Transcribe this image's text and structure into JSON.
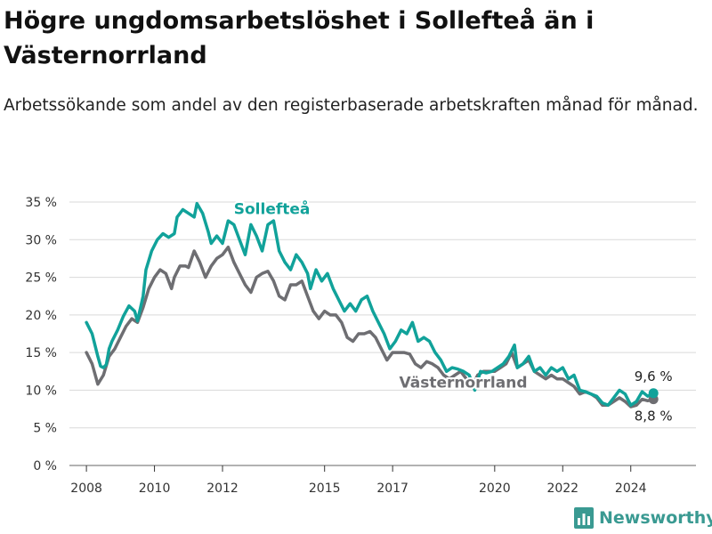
{
  "title": "Högre ungdomsarbetslöshet i Sollefteå än i Västernorrland",
  "subtitle": "Arbetssökande som andel av den registerbaserade arbetskraften månad för månad.",
  "logo": {
    "text": "Newsworthy",
    "icon": "bar-chart-logo-icon"
  },
  "colors": {
    "solleftea": "#11a29a",
    "vasternorrland": "#6e6e72",
    "grid": "#d9d9d9",
    "axis": "#333333"
  },
  "chart_data": {
    "type": "line",
    "x_ticks": [
      "2008",
      "2010",
      "2012",
      "2015",
      "2017",
      "2020",
      "2022",
      "2024"
    ],
    "y_ticks": [
      "0 %",
      "5 %",
      "10 %",
      "15 %",
      "20 %",
      "25 %",
      "30 %",
      "35 %"
    ],
    "ylim": [
      0,
      35
    ],
    "xlim": [
      "2007-07",
      "2025-12"
    ],
    "grid": true,
    "series": [
      {
        "name": "Sollefteå",
        "color": "#11a29a",
        "label_position": "2012-05",
        "end_label": "9,6 %",
        "points": [
          [
            "2008-01",
            19.0
          ],
          [
            "2008-03",
            17.5
          ],
          [
            "2008-05",
            14.5
          ],
          [
            "2008-06",
            13.2
          ],
          [
            "2008-07",
            13.0
          ],
          [
            "2008-08",
            13.4
          ],
          [
            "2008-09",
            15.5
          ],
          [
            "2008-10",
            16.5
          ],
          [
            "2008-12",
            18.0
          ],
          [
            "2009-02",
            19.8
          ],
          [
            "2009-04",
            21.2
          ],
          [
            "2009-06",
            20.5
          ],
          [
            "2009-07",
            19.2
          ],
          [
            "2009-09",
            22.5
          ],
          [
            "2009-10",
            26.0
          ],
          [
            "2009-12",
            28.5
          ],
          [
            "2010-02",
            30.0
          ],
          [
            "2010-04",
            30.8
          ],
          [
            "2010-06",
            30.3
          ],
          [
            "2010-08",
            30.8
          ],
          [
            "2010-09",
            33.0
          ],
          [
            "2010-11",
            34.0
          ],
          [
            "2011-01",
            33.5
          ],
          [
            "2011-03",
            33.0
          ],
          [
            "2011-04",
            34.8
          ],
          [
            "2011-06",
            33.5
          ],
          [
            "2011-08",
            31.0
          ],
          [
            "2011-09",
            29.5
          ],
          [
            "2011-11",
            30.5
          ],
          [
            "2012-01",
            29.5
          ],
          [
            "2012-03",
            32.5
          ],
          [
            "2012-05",
            32.0
          ],
          [
            "2012-07",
            30.0
          ],
          [
            "2012-09",
            28.0
          ],
          [
            "2012-11",
            32.0
          ],
          [
            "2013-01",
            30.5
          ],
          [
            "2013-03",
            28.5
          ],
          [
            "2013-05",
            32.0
          ],
          [
            "2013-07",
            32.5
          ],
          [
            "2013-09",
            28.5
          ],
          [
            "2013-11",
            27.0
          ],
          [
            "2014-01",
            26.0
          ],
          [
            "2014-03",
            28.0
          ],
          [
            "2014-05",
            27.0
          ],
          [
            "2014-07",
            25.5
          ],
          [
            "2014-08",
            23.5
          ],
          [
            "2014-10",
            26.0
          ],
          [
            "2014-12",
            24.5
          ],
          [
            "2015-02",
            25.5
          ],
          [
            "2015-04",
            23.5
          ],
          [
            "2015-06",
            22.0
          ],
          [
            "2015-08",
            20.5
          ],
          [
            "2015-10",
            21.5
          ],
          [
            "2015-12",
            20.5
          ],
          [
            "2016-02",
            22.0
          ],
          [
            "2016-04",
            22.5
          ],
          [
            "2016-06",
            20.5
          ],
          [
            "2016-08",
            19.0
          ],
          [
            "2016-10",
            17.5
          ],
          [
            "2016-12",
            15.5
          ],
          [
            "2017-02",
            16.5
          ],
          [
            "2017-04",
            18.0
          ],
          [
            "2017-06",
            17.5
          ],
          [
            "2017-08",
            19.0
          ],
          [
            "2017-10",
            16.5
          ],
          [
            "2017-12",
            17.0
          ],
          [
            "2018-02",
            16.5
          ],
          [
            "2018-04",
            15.0
          ],
          [
            "2018-06",
            14.0
          ],
          [
            "2018-08",
            12.5
          ],
          [
            "2018-10",
            13.0
          ],
          [
            "2018-12",
            12.8
          ],
          [
            "2019-02",
            12.5
          ],
          [
            "2019-04",
            12.0
          ],
          [
            "2019-06",
            10.0
          ],
          [
            "2019-08",
            12.5
          ],
          [
            "2019-10",
            12.3
          ],
          [
            "2019-12",
            12.5
          ],
          [
            "2020-02",
            13.0
          ],
          [
            "2020-04",
            13.5
          ],
          [
            "2020-06",
            14.5
          ],
          [
            "2020-08",
            16.0
          ],
          [
            "2020-09",
            13.0
          ],
          [
            "2020-11",
            13.5
          ],
          [
            "2021-01",
            14.5
          ],
          [
            "2021-03",
            12.5
          ],
          [
            "2021-05",
            13.0
          ],
          [
            "2021-07",
            12.0
          ],
          [
            "2021-09",
            13.0
          ],
          [
            "2021-11",
            12.5
          ],
          [
            "2022-01",
            13.0
          ],
          [
            "2022-03",
            11.5
          ],
          [
            "2022-05",
            12.0
          ],
          [
            "2022-07",
            10.0
          ],
          [
            "2022-09",
            9.8
          ],
          [
            "2022-11",
            9.5
          ],
          [
            "2023-01",
            9.2
          ],
          [
            "2023-03",
            8.3
          ],
          [
            "2023-05",
            8.0
          ],
          [
            "2023-07",
            9.0
          ],
          [
            "2023-09",
            10.0
          ],
          [
            "2023-11",
            9.5
          ],
          [
            "2024-01",
            8.0
          ],
          [
            "2024-03",
            8.5
          ],
          [
            "2024-05",
            9.8
          ],
          [
            "2024-07",
            9.2
          ],
          [
            "2024-09",
            9.6
          ]
        ]
      },
      {
        "name": "Västernorrland",
        "color": "#6e6e72",
        "label_position": "2019-06",
        "end_label": "8,8 %",
        "points": [
          [
            "2008-01",
            15.0
          ],
          [
            "2008-03",
            13.5
          ],
          [
            "2008-05",
            10.8
          ],
          [
            "2008-07",
            12.0
          ],
          [
            "2008-09",
            14.5
          ],
          [
            "2008-11",
            15.5
          ],
          [
            "2009-01",
            17.0
          ],
          [
            "2009-03",
            18.5
          ],
          [
            "2009-05",
            19.5
          ],
          [
            "2009-07",
            19.0
          ],
          [
            "2009-09",
            21.0
          ],
          [
            "2009-11",
            23.5
          ],
          [
            "2010-01",
            25.0
          ],
          [
            "2010-03",
            26.0
          ],
          [
            "2010-05",
            25.5
          ],
          [
            "2010-07",
            23.5
          ],
          [
            "2010-08",
            25.0
          ],
          [
            "2010-10",
            26.5
          ],
          [
            "2010-12",
            26.5
          ],
          [
            "2011-01",
            26.3
          ],
          [
            "2011-03",
            28.5
          ],
          [
            "2011-05",
            27.0
          ],
          [
            "2011-07",
            25.0
          ],
          [
            "2011-09",
            26.5
          ],
          [
            "2011-11",
            27.5
          ],
          [
            "2012-01",
            28.0
          ],
          [
            "2012-03",
            29.0
          ],
          [
            "2012-05",
            27.0
          ],
          [
            "2012-07",
            25.5
          ],
          [
            "2012-09",
            24.0
          ],
          [
            "2012-11",
            23.0
          ],
          [
            "2013-01",
            25.0
          ],
          [
            "2013-03",
            25.5
          ],
          [
            "2013-05",
            25.8
          ],
          [
            "2013-07",
            24.5
          ],
          [
            "2013-09",
            22.5
          ],
          [
            "2013-11",
            22.0
          ],
          [
            "2014-01",
            24.0
          ],
          [
            "2014-03",
            24.0
          ],
          [
            "2014-05",
            24.5
          ],
          [
            "2014-07",
            22.5
          ],
          [
            "2014-09",
            20.5
          ],
          [
            "2014-11",
            19.5
          ],
          [
            "2015-01",
            20.5
          ],
          [
            "2015-03",
            20.0
          ],
          [
            "2015-05",
            20.0
          ],
          [
            "2015-07",
            19.0
          ],
          [
            "2015-09",
            17.0
          ],
          [
            "2015-11",
            16.5
          ],
          [
            "2016-01",
            17.5
          ],
          [
            "2016-03",
            17.5
          ],
          [
            "2016-05",
            17.8
          ],
          [
            "2016-07",
            17.0
          ],
          [
            "2016-09",
            15.5
          ],
          [
            "2016-11",
            14.0
          ],
          [
            "2017-01",
            15.0
          ],
          [
            "2017-03",
            15.0
          ],
          [
            "2017-05",
            15.0
          ],
          [
            "2017-07",
            14.8
          ],
          [
            "2017-09",
            13.5
          ],
          [
            "2017-11",
            13.0
          ],
          [
            "2018-01",
            13.8
          ],
          [
            "2018-03",
            13.5
          ],
          [
            "2018-05",
            13.0
          ],
          [
            "2018-07",
            12.0
          ],
          [
            "2018-09",
            11.5
          ],
          [
            "2018-11",
            12.0
          ],
          [
            "2019-01",
            12.5
          ],
          [
            "2019-03",
            11.5
          ],
          [
            "2019-05",
            10.5
          ],
          [
            "2019-07",
            12.0
          ],
          [
            "2019-09",
            12.5
          ],
          [
            "2019-11",
            12.5
          ],
          [
            "2020-01",
            12.5
          ],
          [
            "2020-03",
            13.0
          ],
          [
            "2020-05",
            13.5
          ],
          [
            "2020-07",
            15.0
          ],
          [
            "2020-09",
            13.0
          ],
          [
            "2020-11",
            13.5
          ],
          [
            "2021-01",
            14.0
          ],
          [
            "2021-03",
            12.5
          ],
          [
            "2021-05",
            12.0
          ],
          [
            "2021-07",
            11.5
          ],
          [
            "2021-09",
            12.0
          ],
          [
            "2021-11",
            11.5
          ],
          [
            "2022-01",
            11.5
          ],
          [
            "2022-03",
            11.0
          ],
          [
            "2022-05",
            10.5
          ],
          [
            "2022-07",
            9.5
          ],
          [
            "2022-09",
            9.8
          ],
          [
            "2022-11",
            9.5
          ],
          [
            "2023-01",
            9.0
          ],
          [
            "2023-03",
            8.0
          ],
          [
            "2023-05",
            8.0
          ],
          [
            "2023-07",
            8.5
          ],
          [
            "2023-09",
            9.0
          ],
          [
            "2023-11",
            8.5
          ],
          [
            "2024-01",
            7.8
          ],
          [
            "2024-03",
            8.0
          ],
          [
            "2024-05",
            8.8
          ],
          [
            "2024-07",
            8.6
          ],
          [
            "2024-09",
            8.8
          ]
        ]
      }
    ]
  }
}
